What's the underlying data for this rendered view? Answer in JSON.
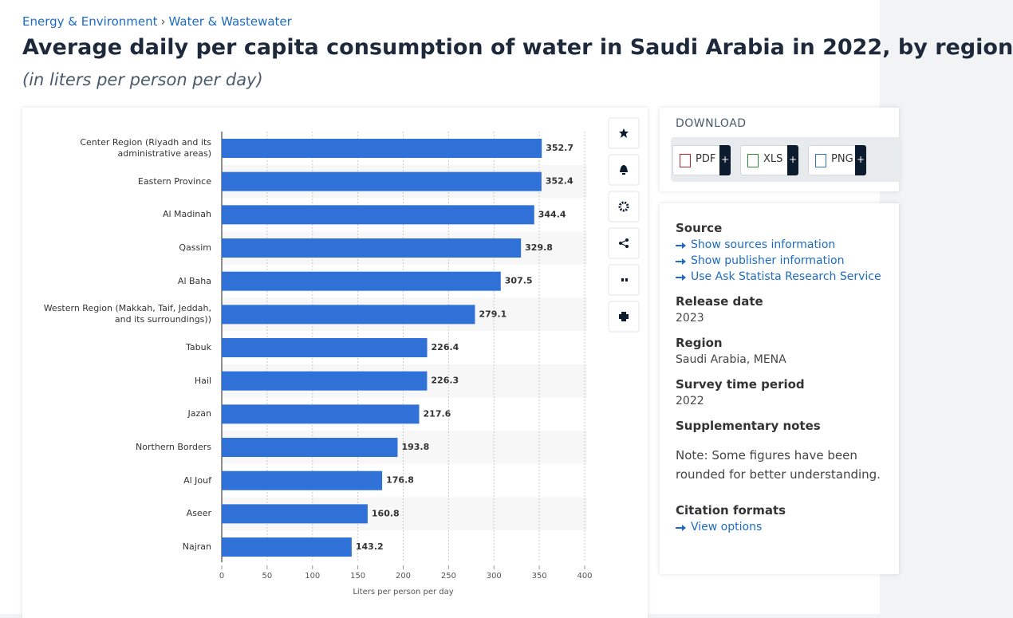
{
  "breadcrumb": {
    "items": [
      "Energy & Environment",
      "Water & Wastewater"
    ],
    "separator": "›"
  },
  "chart_data": {
    "type": "bar",
    "orientation": "horizontal",
    "title": "Average daily per capita consumption of water in Saudi Arabia in 2022, by region",
    "subtitle": "(in liters per person per day)",
    "categories": [
      "Center Region (Riyadh and its administrative areas)",
      "Eastern Province",
      "Al Madinah",
      "Qassim",
      "Al Baha",
      "Western Region (Makkah, Taif, Jeddah, and its surroundings))",
      "Tabuk",
      "Hail",
      "Jazan",
      "Northern Borders",
      "Al Jouf",
      "Aseer",
      "Najran"
    ],
    "values": [
      352.7,
      352.4,
      344.4,
      329.8,
      307.5,
      279.1,
      226.4,
      226.3,
      217.6,
      193.8,
      176.8,
      160.8,
      143.2
    ],
    "color": "#2f71d6",
    "xlabel": "Liters per person per day",
    "xlim": [
      0,
      400
    ],
    "xticks": [
      0,
      50,
      100,
      150,
      200,
      250,
      300,
      350,
      400
    ],
    "grid": true
  },
  "download": {
    "title": "DOWNLOAD",
    "buttons": [
      {
        "label": "PDF",
        "action": "+"
      },
      {
        "label": "XLS",
        "action": "+"
      },
      {
        "label": "PNG",
        "action": "+"
      }
    ]
  },
  "details": [
    {
      "heading": "Source",
      "links": [
        "Show sources information",
        "Show publisher information",
        "Use Ask Statista Research Service"
      ]
    },
    {
      "heading": "Release date",
      "text": "2023"
    },
    {
      "heading": "Region",
      "text": "Saudi Arabia, MENA"
    },
    {
      "heading": "Survey time period",
      "text": "2022"
    },
    {
      "heading": "Supplementary notes",
      "note": "Note: Some figures have been rounded for better understanding."
    },
    {
      "heading": "Citation formats",
      "links": [
        "View options"
      ]
    }
  ]
}
